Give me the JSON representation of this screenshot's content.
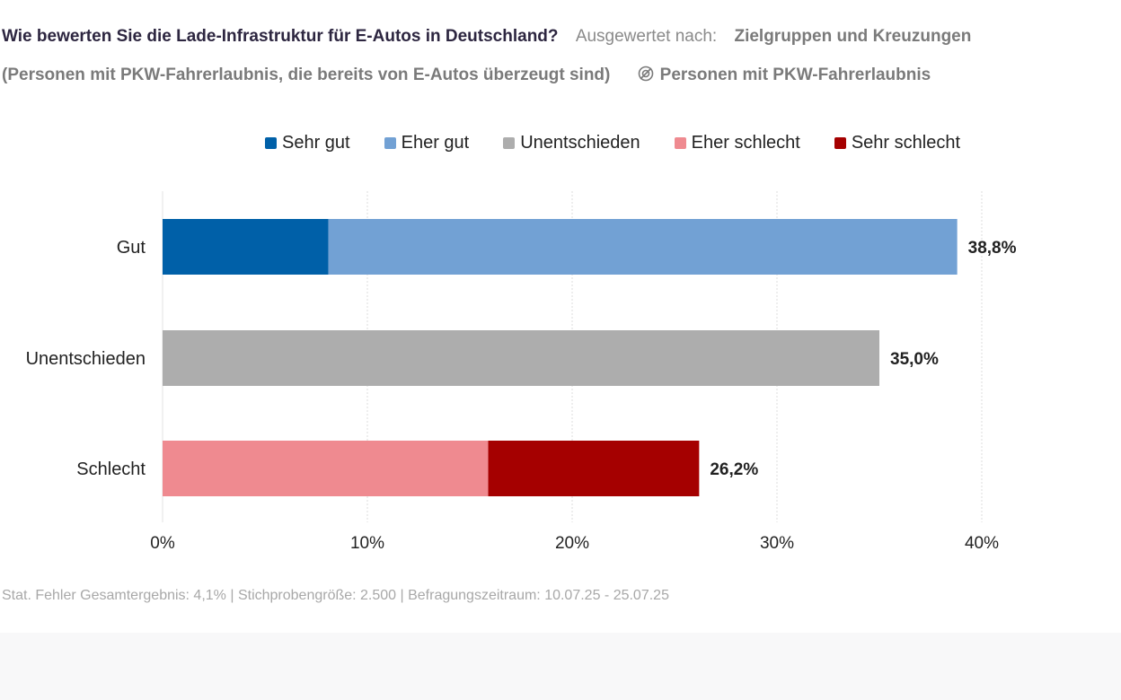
{
  "header": {
    "question": "Wie bewerten Sie die Lade-Infrastruktur für E-Autos in Deutschland?",
    "evaluated_by_label": "Ausgewertet nach:",
    "evaluated_by_value": "Zielgruppen und Kreuzungen",
    "subtitle": "(Personen mit PKW-Fahrerlaubnis, die bereits von E-Autos überzeugt sind)",
    "filter_icon": "filter-target-icon",
    "filter_label": "Personen mit PKW-Fahrerlaubnis"
  },
  "footer": "Stat. Fehler Gesamtergebnis: 4,1% | Stichprobengröße: 2.500 | Befragungszeitraum: 10.07.25 - 25.07.25",
  "chart_data": {
    "type": "bar",
    "orientation": "horizontal",
    "stacked": true,
    "categories": [
      "Gut",
      "Unentschieden",
      "Schlecht"
    ],
    "series": [
      {
        "name": "Sehr gut",
        "color": "#0060a8",
        "values": [
          8.1,
          0,
          0
        ]
      },
      {
        "name": "Eher gut",
        "color": "#72a1d4",
        "values": [
          30.7,
          0,
          0
        ]
      },
      {
        "name": "Unentschieden",
        "color": "#adadad",
        "values": [
          0,
          35.0,
          0
        ]
      },
      {
        "name": "Eher schlecht",
        "color": "#ef8a90",
        "values": [
          0,
          0,
          15.9
        ]
      },
      {
        "name": "Sehr schlecht",
        "color": "#a50000",
        "values": [
          0,
          0,
          10.3
        ]
      }
    ],
    "totals": [
      "38,8%",
      "35,0%",
      "26,2%"
    ],
    "xticks": [
      "0%",
      "10%",
      "20%",
      "30%",
      "40%"
    ],
    "xlim": [
      0,
      40
    ],
    "grid": true,
    "legend": "top"
  }
}
